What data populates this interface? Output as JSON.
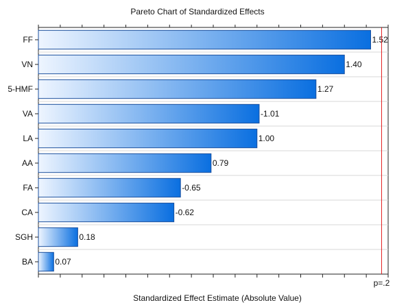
{
  "chart_data": {
    "type": "bar",
    "orientation": "horizontal",
    "title": "Pareto Chart of Standardized Effects",
    "xlabel": "Standardized Effect Estimate (Absolute Value)",
    "ylabel": "",
    "categories": [
      "FF",
      "VN",
      "5-HMF",
      "VA",
      "LA",
      "AA",
      "FA",
      "CA",
      "SGH",
      "BA"
    ],
    "values": [
      1.52,
      1.4,
      1.27,
      1.01,
      1.0,
      0.79,
      0.65,
      0.62,
      0.18,
      0.07
    ],
    "data_labels": [
      "1.52",
      "1.40",
      "1.27",
      "-1.01",
      "1.00",
      "0.79",
      "-0.65",
      "-0.62",
      "0.18",
      "0.07"
    ],
    "xlim": [
      0,
      1.6
    ],
    "reference_line": {
      "value": 1.57,
      "label": "p=.2",
      "color": "#e31a1c"
    },
    "grid": "x-minor-ticks",
    "legend": "none",
    "colors": {
      "bar_start": "#eef5ff",
      "bar_end": "#0a6fe0",
      "bar_stroke": "#1b4f9c"
    }
  }
}
